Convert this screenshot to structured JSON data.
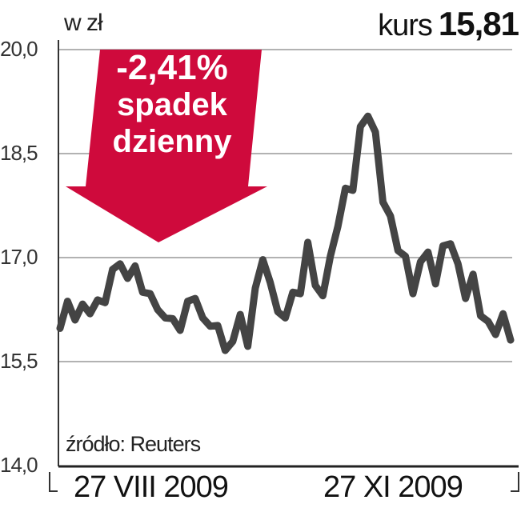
{
  "header": {
    "unit": "w zł",
    "kurs_label": "kurs",
    "kurs_value": "15,81"
  },
  "badge": {
    "change": "-2,41%",
    "line1": "spadek",
    "line2": "dzienny",
    "color": "#cf0a3c"
  },
  "source": "źródło: Reuters",
  "chart_data": {
    "type": "line",
    "ylim": [
      14.0,
      20.0
    ],
    "yticks": [
      "20,0",
      "18,5",
      "17,0",
      "15,5",
      "14,0"
    ],
    "ytick_values": [
      20.0,
      18.5,
      17.0,
      15.5,
      14.0
    ],
    "xtick_labels": [
      "27 VIII 2009",
      "27 XI 2009"
    ],
    "grid": true,
    "line_color": "#444444",
    "values": [
      15.98,
      16.37,
      16.1,
      16.33,
      16.19,
      16.39,
      16.35,
      16.83,
      16.91,
      16.7,
      16.88,
      16.5,
      16.48,
      16.25,
      16.13,
      16.12,
      15.95,
      16.37,
      16.41,
      16.13,
      16.01,
      16.02,
      15.66,
      15.79,
      16.18,
      15.72,
      16.56,
      16.97,
      16.64,
      16.22,
      16.13,
      16.5,
      16.48,
      17.22,
      16.6,
      16.45,
      17.02,
      17.45,
      18.0,
      17.97,
      18.89,
      19.04,
      18.81,
      17.8,
      17.6,
      17.1,
      17.02,
      16.48,
      16.94,
      17.08,
      16.62,
      17.17,
      17.2,
      16.91,
      16.41,
      16.76,
      16.16,
      16.08,
      15.89,
      16.19,
      15.81
    ]
  }
}
